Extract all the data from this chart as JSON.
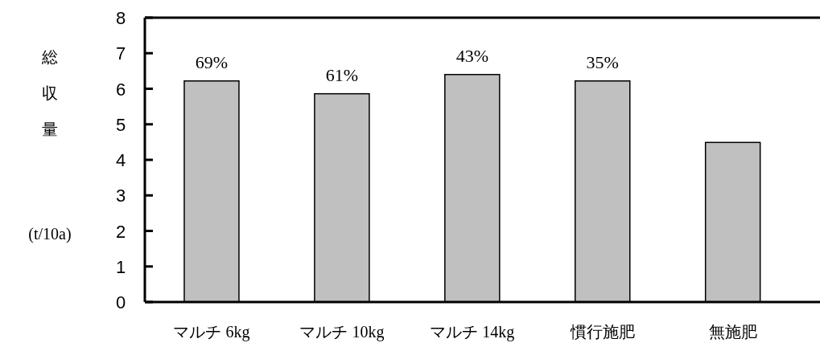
{
  "chart_data": {
    "type": "bar",
    "ylabel": "総収量(t/10a)",
    "categories": [
      "マルチ 6kg",
      "マルチ 10kg",
      "マルチ 14kg",
      "慣行施肥",
      "無施肥"
    ],
    "values": [
      6.22,
      5.86,
      6.4,
      6.22,
      4.49
    ],
    "color": "#c0c0c0",
    "ylim": [
      0,
      8
    ],
    "yticks": [
      0,
      1,
      2,
      3,
      4,
      5,
      6,
      7,
      8
    ],
    "annotations": [
      {
        "text": "69%",
        "x": "マルチ 6kg",
        "y": 6.22
      },
      {
        "text": "61%",
        "x": "マルチ 10kg",
        "y": 5.86
      },
      {
        "text": "43%",
        "x": "マルチ 14kg",
        "y": 6.4
      },
      {
        "text": "35%",
        "x": "慣行施肥",
        "y": 6.22
      }
    ]
  }
}
